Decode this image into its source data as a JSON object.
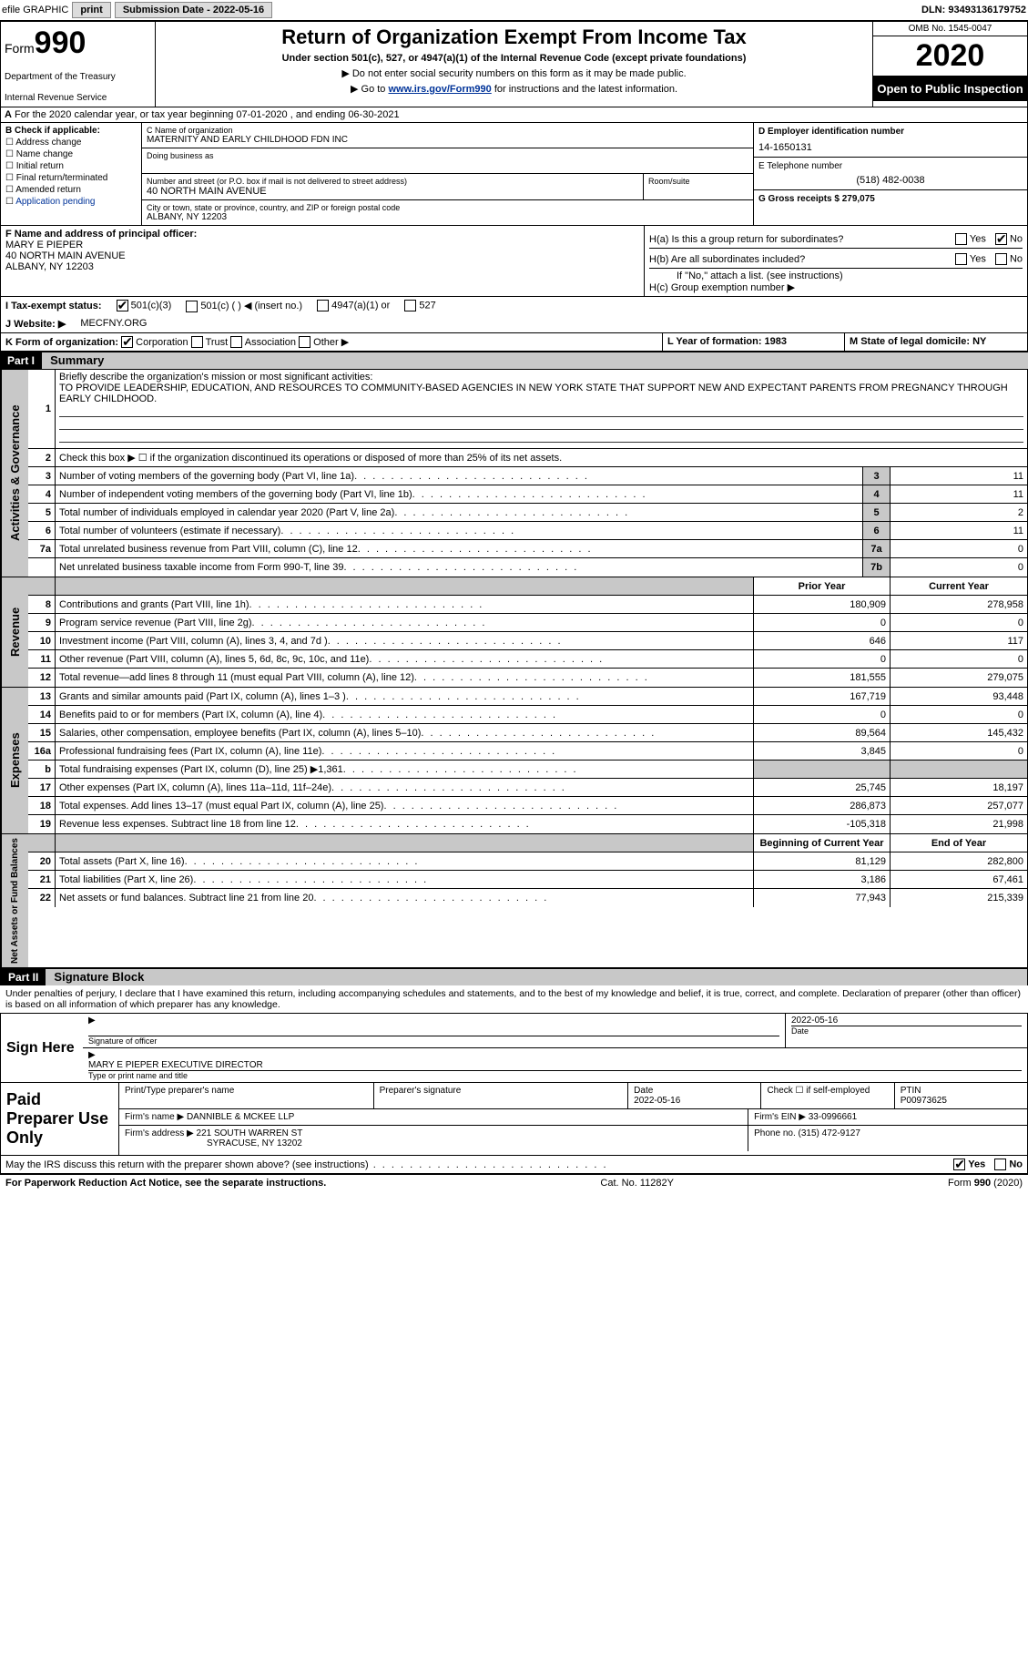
{
  "topbar": {
    "efile": "efile GRAPHIC",
    "print": "print",
    "sub_label": "Submission Date - 2022-05-16",
    "dln_label": "DLN: 93493136179752"
  },
  "header": {
    "form_prefix": "Form",
    "form_num": "990",
    "dept1": "Department of the Treasury",
    "dept2": "Internal Revenue Service",
    "title": "Return of Organization Exempt From Income Tax",
    "sub1": "Under section 501(c), 527, or 4947(a)(1) of the Internal Revenue Code (except private foundations)",
    "sub2": "▶ Do not enter social security numbers on this form as it may be made public.",
    "sub3_pre": "▶ Go to ",
    "sub3_link": "www.irs.gov/Form990",
    "sub3_post": " for instructions and the latest information.",
    "omb": "OMB No. 1545-0047",
    "year": "2020",
    "open": "Open to Public Inspection"
  },
  "period": {
    "label_a": "A",
    "text": " For the 2020 calendar year, or tax year beginning 07-01-2020    , and ending 06-30-2021"
  },
  "b": {
    "label": "B Check if applicable:",
    "c1": "Address change",
    "c2": "Name change",
    "c3": "Initial return",
    "c4": "Final return/terminated",
    "c5": "Amended return",
    "c6": "Application pending"
  },
  "c": {
    "name_label": "C Name of organization",
    "name": "MATERNITY AND EARLY CHILDHOOD FDN INC",
    "dba_label": "Doing business as",
    "addr_label": "Number and street (or P.O. box if mail is not delivered to street address)",
    "room_label": "Room/suite",
    "addr": "40 NORTH MAIN AVENUE",
    "city_label": "City or town, state or province, country, and ZIP or foreign postal code",
    "city": "ALBANY, NY  12203"
  },
  "d": {
    "label": "D Employer identification number",
    "val": "14-1650131"
  },
  "e": {
    "label": "E Telephone number",
    "val": "(518) 482-0038"
  },
  "g": {
    "label": "G Gross receipts $ 279,075"
  },
  "f": {
    "label": "F  Name and address of principal officer:",
    "name": "MARY E PIEPER",
    "addr1": "40 NORTH MAIN AVENUE",
    "addr2": "ALBANY, NY  12203"
  },
  "h": {
    "a": "H(a)  Is this a group return for subordinates?",
    "b": "H(b)  Are all subordinates included?",
    "bnote": "If \"No,\" attach a list. (see instructions)",
    "c": "H(c)  Group exemption number ▶",
    "yes": "Yes",
    "no": "No"
  },
  "i": {
    "label": "I    Tax-exempt status:",
    "o1": "501(c)(3)",
    "o2": "501(c) (  ) ◀ (insert no.)",
    "o3": "4947(a)(1) or",
    "o4": "527"
  },
  "j": {
    "label": "J    Website: ▶",
    "val": "MECFNY.ORG"
  },
  "k": {
    "label": "K Form of organization:",
    "o1": "Corporation",
    "o2": "Trust",
    "o3": "Association",
    "o4": "Other ▶"
  },
  "l": {
    "label": "L Year of formation: 1983"
  },
  "m": {
    "label": "M State of legal domicile: NY"
  },
  "part1": {
    "hdr": "Part I",
    "title": "Summary"
  },
  "gov": {
    "label": "Activities & Governance",
    "l1pre": "1",
    "l1": "Briefly describe the organization's mission or most significant activities:",
    "l1text": "TO PROVIDE LEADERSHIP, EDUCATION, AND RESOURCES TO COMMUNITY-BASED AGENCIES IN NEW YORK STATE THAT SUPPORT NEW AND EXPECTANT PARENTS FROM PREGNANCY THROUGH EARLY CHILDHOOD.",
    "l2n": "2",
    "l2": "Check this box ▶ ☐  if the organization discontinued its operations or disposed of more than 25% of its net assets.",
    "l3n": "3",
    "l3": "Number of voting members of the governing body (Part VI, line 1a)",
    "l3k": "3",
    "l3v": "11",
    "l4n": "4",
    "l4": "Number of independent voting members of the governing body (Part VI, line 1b)",
    "l4k": "4",
    "l4v": "11",
    "l5n": "5",
    "l5": "Total number of individuals employed in calendar year 2020 (Part V, line 2a)",
    "l5k": "5",
    "l5v": "2",
    "l6n": "6",
    "l6": "Total number of volunteers (estimate if necessary)",
    "l6k": "6",
    "l6v": "11",
    "l7an": "7a",
    "l7a": "Total unrelated business revenue from Part VIII, column (C), line 12",
    "l7ak": "7a",
    "l7av": "0",
    "l7bn": "",
    "l7b": "Net unrelated business taxable income from Form 990-T, line 39",
    "l7bk": "7b",
    "l7bv": "0"
  },
  "cols": {
    "prior": "Prior Year",
    "curr": "Current Year",
    "beg": "Beginning of Current Year",
    "end": "End of Year"
  },
  "rev": {
    "label": "Revenue",
    "r": [
      {
        "n": "8",
        "d": "Contributions and grants (Part VIII, line 1h)",
        "p": "180,909",
        "c": "278,958"
      },
      {
        "n": "9",
        "d": "Program service revenue (Part VIII, line 2g)",
        "p": "0",
        "c": "0"
      },
      {
        "n": "10",
        "d": "Investment income (Part VIII, column (A), lines 3, 4, and 7d )",
        "p": "646",
        "c": "117"
      },
      {
        "n": "11",
        "d": "Other revenue (Part VIII, column (A), lines 5, 6d, 8c, 9c, 10c, and 11e)",
        "p": "0",
        "c": "0"
      },
      {
        "n": "12",
        "d": "Total revenue—add lines 8 through 11 (must equal Part VIII, column (A), line 12)",
        "p": "181,555",
        "c": "279,075"
      }
    ]
  },
  "exp": {
    "label": "Expenses",
    "r": [
      {
        "n": "13",
        "d": "Grants and similar amounts paid (Part IX, column (A), lines 1–3 )",
        "p": "167,719",
        "c": "93,448"
      },
      {
        "n": "14",
        "d": "Benefits paid to or for members (Part IX, column (A), line 4)",
        "p": "0",
        "c": "0"
      },
      {
        "n": "15",
        "d": "Salaries, other compensation, employee benefits (Part IX, column (A), lines 5–10)",
        "p": "89,564",
        "c": "145,432"
      },
      {
        "n": "16a",
        "d": "Professional fundraising fees (Part IX, column (A), line 11e)",
        "p": "3,845",
        "c": "0"
      },
      {
        "n": "b",
        "d": "Total fundraising expenses (Part IX, column (D), line 25) ▶1,361",
        "p": "",
        "c": "",
        "gray": true
      },
      {
        "n": "17",
        "d": "Other expenses (Part IX, column (A), lines 11a–11d, 11f–24e)",
        "p": "25,745",
        "c": "18,197"
      },
      {
        "n": "18",
        "d": "Total expenses. Add lines 13–17 (must equal Part IX, column (A), line 25)",
        "p": "286,873",
        "c": "257,077"
      },
      {
        "n": "19",
        "d": "Revenue less expenses. Subtract line 18 from line 12",
        "p": "-105,318",
        "c": "21,998"
      }
    ]
  },
  "net": {
    "label": "Net Assets or Fund Balances",
    "r": [
      {
        "n": "20",
        "d": "Total assets (Part X, line 16)",
        "p": "81,129",
        "c": "282,800"
      },
      {
        "n": "21",
        "d": "Total liabilities (Part X, line 26)",
        "p": "3,186",
        "c": "67,461"
      },
      {
        "n": "22",
        "d": "Net assets or fund balances. Subtract line 21 from line 20",
        "p": "77,943",
        "c": "215,339"
      }
    ]
  },
  "part2": {
    "hdr": "Part II",
    "title": "Signature Block"
  },
  "sig": {
    "penalty": "Under penalties of perjury, I declare that I have examined this return, including accompanying schedules and statements, and to the best of my knowledge and belief, it is true, correct, and complete. Declaration of preparer (other than officer) is based on all information of which preparer has any knowledge.",
    "signhere": "Sign Here",
    "sigoff": "Signature of officer",
    "date": "Date",
    "dateval": "2022-05-16",
    "name": "MARY E PIEPER  EXECUTIVE DIRECTOR",
    "nametitle": "Type or print name and title"
  },
  "prep": {
    "label": "Paid Preparer Use Only",
    "h1": "Print/Type preparer's name",
    "h2": "Preparer's signature",
    "h3": "Date",
    "h3v": "2022-05-16",
    "h4": "Check ☐ if self-employed",
    "h5": "PTIN",
    "h5v": "P00973625",
    "firmname_l": "Firm's name    ▶",
    "firmname": "DANNIBLE & MCKEE LLP",
    "ein_l": "Firm's EIN ▶",
    "ein": "33-0996661",
    "addr_l": "Firm's address ▶",
    "addr1": "221 SOUTH WARREN ST",
    "addr2": "SYRACUSE, NY  13202",
    "phone_l": "Phone no.",
    "phone": "(315) 472-9127"
  },
  "discuss": {
    "q": "May the IRS discuss this return with the preparer shown above? (see instructions)",
    "yes": "Yes",
    "no": "No"
  },
  "footer": {
    "l": "For Paperwork Reduction Act Notice, see the separate instructions.",
    "c": "Cat. No. 11282Y",
    "r": "Form 990 (2020)"
  }
}
